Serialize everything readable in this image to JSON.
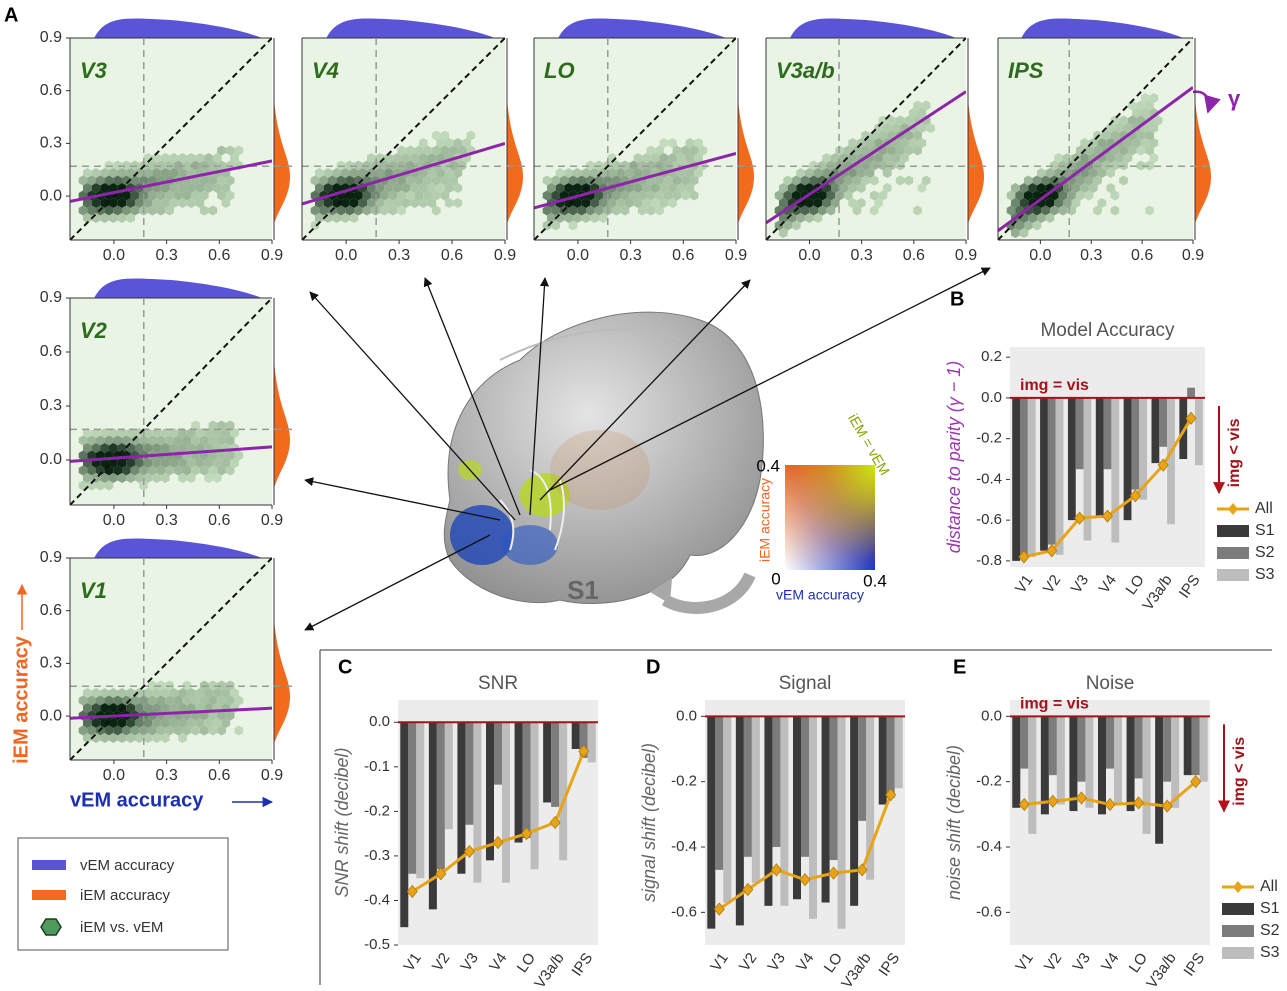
{
  "figure": {
    "panel_labels": [
      "A",
      "B",
      "C",
      "D",
      "E"
    ],
    "y_axis_label": "iEM accuracy",
    "x_axis_label": "vEM accuracy",
    "legend": [
      "vEM accuracy",
      "iEM accuracy",
      "iEM vs. vEM"
    ],
    "gamma": "γ",
    "subject": "S1",
    "colorkey": {
      "max_y": "0.4",
      "y_label": "iEM accuracy",
      "diag_label": "iEM = vEM",
      "origin": "0",
      "x_label": "vEM accuracy",
      "max_x": "0.4"
    }
  },
  "chart_data": [
    {
      "type": "hexbin",
      "title": "V3",
      "xlim": [
        -0.25,
        0.9
      ],
      "ylim": [
        -0.25,
        0.9
      ],
      "xticks": [
        {
          "value": 0,
          "label": "0.0"
        },
        0.3,
        0.6,
        0.9
      ],
      "yticks": [
        {
          "value": 0,
          "label": "0.0"
        },
        0.3,
        0.6,
        0.9
      ],
      "chance": 0.17,
      "fit": {
        "slope": 0.2,
        "intercept": 0.02
      }
    },
    {
      "type": "hexbin",
      "title": "V4",
      "xlim": [
        -0.25,
        0.9
      ],
      "ylim": [
        -0.25,
        0.9
      ],
      "xticks": [
        {
          "value": 0,
          "label": "0.0"
        },
        0.3,
        0.6,
        0.9
      ],
      "chance": 0.17,
      "fit": {
        "slope": 0.3,
        "intercept": 0.03
      }
    },
    {
      "type": "hexbin",
      "title": "LO",
      "xlim": [
        -0.25,
        0.9
      ],
      "ylim": [
        -0.25,
        0.9
      ],
      "xticks": [
        {
          "value": 0,
          "label": "0.0"
        },
        0.3,
        0.6,
        0.9
      ],
      "chance": 0.17,
      "fit": {
        "slope": 0.27,
        "intercept": 0.0
      }
    },
    {
      "type": "hexbin",
      "title": "V3a/b",
      "xlim": [
        -0.25,
        0.9
      ],
      "ylim": [
        -0.25,
        0.9
      ],
      "xticks": [
        {
          "value": 0,
          "label": "0.0"
        },
        0.3,
        0.6,
        0.9
      ],
      "chance": 0.17,
      "fit": {
        "slope": 0.65,
        "intercept": 0.01
      }
    },
    {
      "type": "hexbin",
      "title": "IPS",
      "xlim": [
        -0.25,
        0.9
      ],
      "ylim": [
        -0.25,
        0.9
      ],
      "xticks": [
        {
          "value": 0,
          "label": "0.0"
        },
        0.3,
        0.6,
        0.9
      ],
      "chance": 0.17,
      "fit": {
        "slope": 0.71,
        "intercept": -0.02
      }
    },
    {
      "type": "hexbin",
      "title": "V2",
      "xlim": [
        -0.25,
        0.9
      ],
      "ylim": [
        -0.25,
        0.9
      ],
      "xticks": [
        {
          "value": 0,
          "label": "0.0"
        },
        0.3,
        0.6,
        0.9
      ],
      "yticks": [
        {
          "value": 0,
          "label": "0.0"
        },
        0.3,
        0.6,
        0.9
      ],
      "chance": 0.17,
      "fit": {
        "slope": 0.07,
        "intercept": 0.01
      }
    },
    {
      "type": "hexbin",
      "title": "V1",
      "xlim": [
        -0.25,
        0.9
      ],
      "ylim": [
        -0.25,
        0.9
      ],
      "xticks": [
        {
          "value": 0,
          "label": "0.0"
        },
        0.3,
        0.6,
        0.9
      ],
      "yticks": [
        {
          "value": 0,
          "label": "0.0"
        },
        0.3,
        0.6,
        0.9
      ],
      "chance": 0.17,
      "fit": {
        "slope": 0.05,
        "intercept": 0.0
      }
    },
    {
      "type": "bar",
      "title": "Model Accuracy",
      "ylabel": "distance to parity (γ − 1)",
      "annotations": [
        "img = vis",
        "img < vis"
      ],
      "legend": true,
      "categories": [
        "V1",
        "V2",
        "V3",
        "V4",
        "LO",
        "V3a/b",
        "IPS"
      ],
      "ylim": [
        -0.83,
        0.25
      ],
      "yticks": [
        0.2,
        {
          "value": 0,
          "label": "0.0"
        },
        -0.2,
        -0.4,
        -0.6,
        -0.8
      ],
      "series": [
        {
          "name": "All",
          "color": "#e8a317",
          "type": "line",
          "values": [
            -0.78,
            -0.75,
            -0.59,
            -0.58,
            -0.48,
            -0.33,
            -0.1
          ]
        },
        {
          "name": "S1",
          "color": "#3a3a3a",
          "values": [
            -0.8,
            -0.75,
            -0.6,
            -0.58,
            -0.6,
            -0.32,
            -0.3
          ]
        },
        {
          "name": "S2",
          "color": "#7c7c7c",
          "values": [
            -0.78,
            -0.72,
            -0.35,
            -0.35,
            -0.45,
            -0.24,
            0.05
          ]
        },
        {
          "name": "S3",
          "color": "#bdbdbd",
          "values": [
            -0.78,
            -0.77,
            -0.7,
            -0.71,
            -0.5,
            -0.62,
            -0.33
          ]
        }
      ]
    },
    {
      "type": "bar",
      "title": "SNR",
      "ylabel": "SNR shift (decibel)",
      "categories": [
        "V1",
        "V2",
        "V3",
        "V4",
        "LO",
        "V3a/b",
        "IPS"
      ],
      "ylim": [
        -0.5,
        0.05
      ],
      "yticks": [
        {
          "value": 0,
          "label": "0.0"
        },
        -0.1,
        -0.2,
        -0.3,
        -0.4,
        -0.5
      ],
      "series": [
        {
          "color": "#e8a317",
          "type": "line",
          "values": [
            -0.38,
            -0.34,
            -0.29,
            -0.27,
            -0.25,
            -0.225,
            -0.065
          ]
        },
        {
          "color": "#3a3a3a",
          "values": [
            -0.46,
            -0.42,
            -0.34,
            -0.31,
            -0.27,
            -0.18,
            -0.06
          ]
        },
        {
          "color": "#7c7c7c",
          "values": [
            -0.34,
            -0.33,
            -0.23,
            -0.14,
            -0.26,
            -0.19,
            -0.08
          ]
        },
        {
          "color": "#bdbdbd",
          "values": [
            -0.35,
            -0.24,
            -0.36,
            -0.36,
            -0.33,
            -0.31,
            -0.09
          ]
        }
      ]
    },
    {
      "type": "bar",
      "title": "Signal",
      "ylabel": "signal shift (decibel)",
      "categories": [
        "V1",
        "V2",
        "V3",
        "V4",
        "LO",
        "V3a/b",
        "IPS"
      ],
      "ylim": [
        -0.7,
        0.05
      ],
      "yticks": [
        {
          "value": 0,
          "label": "0.0"
        },
        -0.2,
        -0.4,
        -0.6
      ],
      "series": [
        {
          "color": "#e8a317",
          "type": "line",
          "values": [
            -0.59,
            -0.53,
            -0.47,
            -0.5,
            -0.48,
            -0.47,
            -0.24
          ]
        },
        {
          "color": "#3a3a3a",
          "values": [
            -0.65,
            -0.64,
            -0.58,
            -0.56,
            -0.57,
            -0.58,
            -0.27
          ]
        },
        {
          "color": "#7c7c7c",
          "values": [
            -0.47,
            -0.43,
            -0.4,
            -0.43,
            -0.44,
            -0.32,
            -0.25
          ]
        },
        {
          "color": "#bdbdbd",
          "values": [
            -0.57,
            -0.51,
            -0.58,
            -0.62,
            -0.65,
            -0.5,
            -0.22
          ]
        }
      ]
    },
    {
      "type": "bar",
      "title": "Noise",
      "ylabel": "noise shift (decibel)",
      "annotations": [
        "img = vis",
        "img < vis"
      ],
      "legend": true,
      "categories": [
        "V1",
        "V2",
        "V3",
        "V4",
        "LO",
        "V3a/b",
        "IPS"
      ],
      "ylim": [
        -0.7,
        0.05
      ],
      "yticks": [
        {
          "value": 0,
          "label": "0.0"
        },
        -0.2,
        -0.4,
        -0.6
      ],
      "series": [
        {
          "name": "All",
          "color": "#e8a317",
          "type": "line",
          "values": [
            -0.27,
            -0.26,
            -0.25,
            -0.27,
            -0.265,
            -0.275,
            -0.2
          ]
        },
        {
          "name": "S1",
          "color": "#3a3a3a",
          "values": [
            -0.28,
            -0.3,
            -0.29,
            -0.3,
            -0.29,
            -0.39,
            -0.18
          ]
        },
        {
          "name": "S2",
          "color": "#7c7c7c",
          "values": [
            -0.16,
            -0.18,
            -0.2,
            -0.16,
            -0.19,
            -0.2,
            -0.18
          ]
        },
        {
          "name": "S3",
          "color": "#bdbdbd",
          "values": [
            -0.36,
            -0.27,
            -0.28,
            -0.27,
            -0.36,
            -0.28,
            -0.2
          ]
        }
      ]
    }
  ]
}
